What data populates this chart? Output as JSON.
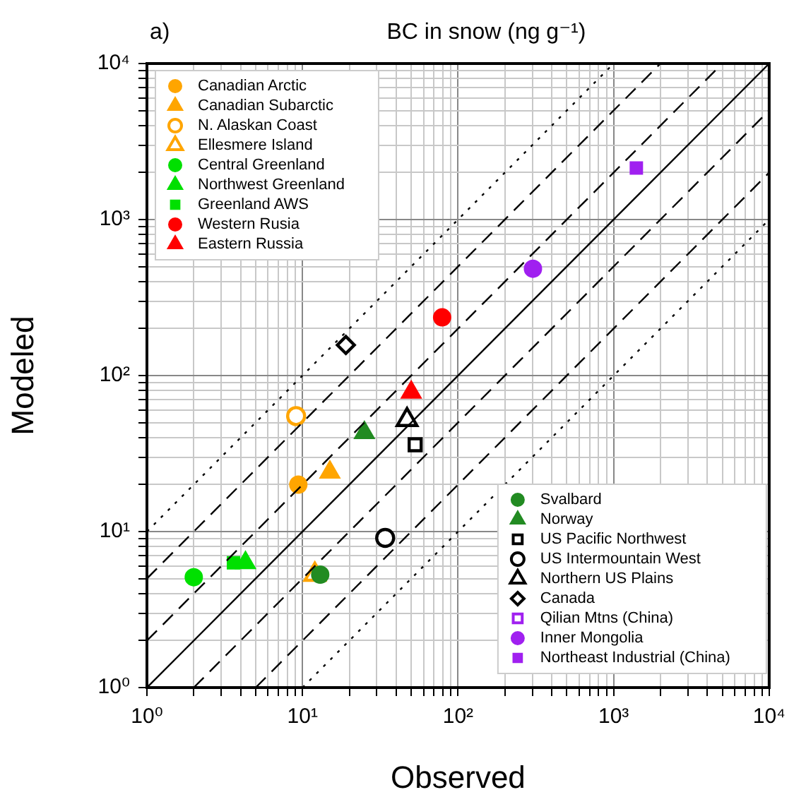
{
  "chart_data": {
    "type": "scatter",
    "title": "BC in snow (ng g⁻¹)",
    "xlabel": "Observed",
    "ylabel": "Modeled",
    "annotations": [
      "a)"
    ],
    "log": "xy",
    "grid": true,
    "legend": "top left",
    "xlim": [
      1,
      10000
    ],
    "ylim": [
      1,
      10000
    ],
    "xticks": [
      {
        "value": 1,
        "label": "10⁰"
      },
      {
        "value": 2,
        "label": null
      },
      {
        "value": 3,
        "label": null
      },
      {
        "value": 4,
        "label": null
      },
      {
        "value": 5,
        "label": null
      },
      {
        "value": 6,
        "label": null
      },
      {
        "value": 7,
        "label": null
      },
      {
        "value": 8,
        "label": null
      },
      {
        "value": 9,
        "label": null
      },
      {
        "value": 10,
        "label": "10¹"
      },
      {
        "value": 20,
        "label": null
      },
      {
        "value": 30,
        "label": null
      },
      {
        "value": 40,
        "label": null
      },
      {
        "value": 50,
        "label": null
      },
      {
        "value": 60,
        "label": null
      },
      {
        "value": 70,
        "label": null
      },
      {
        "value": 80,
        "label": null
      },
      {
        "value": 90,
        "label": null
      },
      {
        "value": 100,
        "label": "10²"
      },
      {
        "value": 200,
        "label": null
      },
      {
        "value": 300,
        "label": null
      },
      {
        "value": 400,
        "label": null
      },
      {
        "value": 500,
        "label": null
      },
      {
        "value": 600,
        "label": null
      },
      {
        "value": 700,
        "label": null
      },
      {
        "value": 800,
        "label": null
      },
      {
        "value": 900,
        "label": null
      },
      {
        "value": 1000,
        "label": "10³"
      },
      {
        "value": 2000,
        "label": null
      },
      {
        "value": 3000,
        "label": null
      },
      {
        "value": 4000,
        "label": null
      },
      {
        "value": 5000,
        "label": null
      },
      {
        "value": 6000,
        "label": null
      },
      {
        "value": 7000,
        "label": null
      },
      {
        "value": 8000,
        "label": null
      },
      {
        "value": 9000,
        "label": null
      },
      {
        "value": 10000,
        "label": "10⁴"
      }
    ],
    "yticks": [
      {
        "value": 1,
        "label": "10⁰"
      },
      {
        "value": 2,
        "label": null
      },
      {
        "value": 3,
        "label": null
      },
      {
        "value": 4,
        "label": null
      },
      {
        "value": 5,
        "label": null
      },
      {
        "value": 6,
        "label": null
      },
      {
        "value": 7,
        "label": null
      },
      {
        "value": 8,
        "label": null
      },
      {
        "value": 9,
        "label": null
      },
      {
        "value": 10,
        "label": "10¹"
      },
      {
        "value": 20,
        "label": null
      },
      {
        "value": 30,
        "label": null
      },
      {
        "value": 40,
        "label": null
      },
      {
        "value": 50,
        "label": null
      },
      {
        "value": 60,
        "label": null
      },
      {
        "value": 70,
        "label": null
      },
      {
        "value": 80,
        "label": null
      },
      {
        "value": 90,
        "label": null
      },
      {
        "value": 100,
        "label": "10²"
      },
      {
        "value": 200,
        "label": null
      },
      {
        "value": 300,
        "label": null
      },
      {
        "value": 400,
        "label": null
      },
      {
        "value": 500,
        "label": null
      },
      {
        "value": 600,
        "label": null
      },
      {
        "value": 700,
        "label": null
      },
      {
        "value": 800,
        "label": null
      },
      {
        "value": 900,
        "label": null
      },
      {
        "value": 1000,
        "label": "10³"
      },
      {
        "value": 2000,
        "label": null
      },
      {
        "value": 3000,
        "label": null
      },
      {
        "value": 4000,
        "label": null
      },
      {
        "value": 5000,
        "label": null
      },
      {
        "value": 6000,
        "label": null
      },
      {
        "value": 7000,
        "label": null
      },
      {
        "value": 8000,
        "label": null
      },
      {
        "value": 9000,
        "label": null
      },
      {
        "value": 10000,
        "label": "10⁴"
      }
    ],
    "series": [
      {
        "type": "line",
        "color": "#000000",
        "line_style": "solid",
        "marker": "none",
        "x": [
          1,
          10000
        ],
        "values": [
          1,
          10000
        ]
      },
      {
        "type": "line",
        "color": "#000000",
        "line_style": "dashed",
        "marker": "none",
        "x": [
          1,
          5000
        ],
        "values": [
          2,
          10000
        ]
      },
      {
        "type": "line",
        "color": "#000000",
        "line_style": "dashed",
        "marker": "none",
        "x": [
          2,
          10000
        ],
        "values": [
          1,
          5000
        ]
      },
      {
        "type": "line",
        "color": "#000000",
        "line_style": "dashed",
        "marker": "none",
        "x": [
          1,
          2000
        ],
        "values": [
          5,
          10000
        ]
      },
      {
        "type": "line",
        "color": "#000000",
        "line_style": "dashed",
        "marker": "none",
        "x": [
          5,
          10000
        ],
        "values": [
          1,
          2000
        ]
      },
      {
        "type": "line",
        "color": "#000000",
        "line_style": "dotted",
        "marker": "none",
        "x": [
          1,
          1000
        ],
        "values": [
          10,
          10000
        ]
      },
      {
        "type": "line",
        "color": "#000000",
        "line_style": "dotted",
        "marker": "none",
        "x": [
          10,
          10000
        ],
        "values": [
          1,
          1000
        ]
      },
      {
        "name": "Canadian Arctic",
        "color": "#ffa500",
        "marker": "circle",
        "x": [
          9.4
        ],
        "values": [
          20
        ]
      },
      {
        "name": "Canadian Subarctic",
        "color": "#ffa500",
        "marker": "triangle",
        "x": [
          15
        ],
        "values": [
          24
        ]
      },
      {
        "name": "N. Alaskan Coast",
        "color": "#ffa500",
        "marker": "circle-open",
        "x": [
          9.1
        ],
        "values": [
          55
        ]
      },
      {
        "name": "Ellesmere Island",
        "color": "#ffa500",
        "marker": "triangle-open",
        "x": [
          12
        ],
        "values": [
          5.3
        ]
      },
      {
        "name": "Central Greenland",
        "color": "#00e000",
        "marker": "circle",
        "x": [
          2
        ],
        "values": [
          5.1
        ]
      },
      {
        "name": "Northwest Greenland",
        "color": "#00e000",
        "marker": "triangle",
        "x": [
          4.3
        ],
        "values": [
          6.3
        ]
      },
      {
        "name": "Greenland AWS",
        "color": "#00e000",
        "marker": "square",
        "x": [
          3.6
        ],
        "values": [
          6.3
        ]
      },
      {
        "name": "Western Rusia",
        "color": "#ff0000",
        "marker": "circle",
        "x": [
          79
        ],
        "values": [
          236
        ]
      },
      {
        "name": "Eastern Russia",
        "color": "#ff0000",
        "marker": "triangle",
        "x": [
          50
        ],
        "values": [
          78
        ]
      },
      {
        "name": "Svalbard",
        "color": "#228b22",
        "marker": "circle",
        "x": [
          13
        ],
        "values": [
          5.3
        ]
      },
      {
        "name": "Norway",
        "color": "#228b22",
        "marker": "triangle",
        "x": [
          25
        ],
        "values": [
          43
        ]
      },
      {
        "name": "US Pacific Northwest",
        "color": "#000000",
        "marker": "square-open",
        "x": [
          53
        ],
        "values": [
          36
        ]
      },
      {
        "name": "US Intermountain West",
        "color": "#000000",
        "marker": "circle-open",
        "x": [
          34
        ],
        "values": [
          9.1
        ]
      },
      {
        "name": "Northern US Plains",
        "color": "#000000",
        "marker": "triangle-open",
        "x": [
          47
        ],
        "values": [
          52
        ]
      },
      {
        "name": "Canada",
        "color": "#000000",
        "marker": "diamond-open",
        "x": [
          19
        ],
        "values": [
          157
        ]
      },
      {
        "name": "Qilian Mtns (China)",
        "color": "#a020f0",
        "marker": "square-open"
      },
      {
        "name": "Inner Mongolia",
        "color": "#a020f0",
        "marker": "circle",
        "x": [
          303
        ],
        "values": [
          484
        ]
      },
      {
        "name": "Northeast Industrial (China)",
        "color": "#a020f0",
        "marker": "square",
        "x": [
          1400
        ],
        "values": [
          2140
        ]
      }
    ]
  }
}
